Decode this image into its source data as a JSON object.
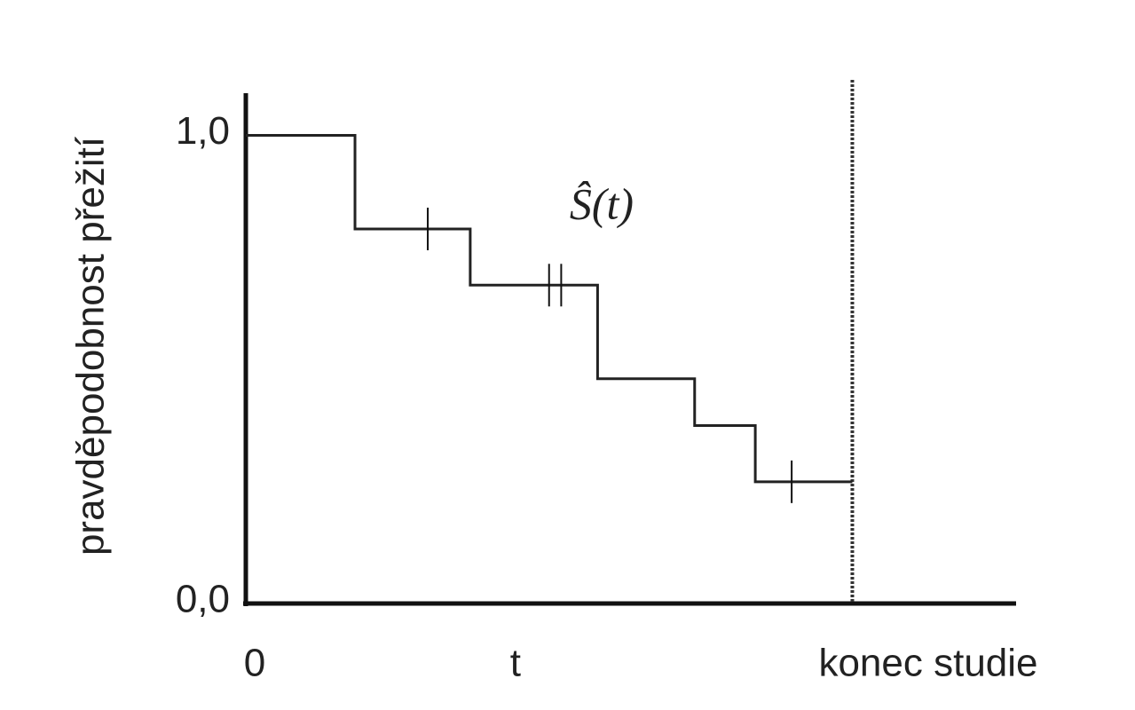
{
  "chart_data": {
    "type": "step",
    "y_label": "pravděpodobnost přežití",
    "annotation": "Ŝ(t)",
    "x": [
      0,
      0.18,
      0.37,
      0.58,
      0.74,
      0.84,
      1.0
    ],
    "series": [
      {
        "name": "Ŝ(t)",
        "color": "#222222",
        "values": [
          1.0,
          0.8,
          0.68,
          0.48,
          0.38,
          0.26,
          0.26
        ]
      }
    ],
    "censored": {
      "x": [
        0.3,
        0.5,
        0.52,
        0.9
      ],
      "values": [
        0.8,
        0.68,
        0.68,
        0.26
      ]
    },
    "xlim": [
      0,
      1.27
    ],
    "xticks": [
      0,
      {
        "value": 0.43,
        "label": "t"
      },
      {
        "value": 1,
        "label": "konec studie"
      }
    ],
    "ylim": [
      0,
      1.09
    ],
    "yticks": [
      {
        "value": 0,
        "label": "0,0"
      },
      {
        "value": 1,
        "label": "1,0"
      }
    ]
  }
}
